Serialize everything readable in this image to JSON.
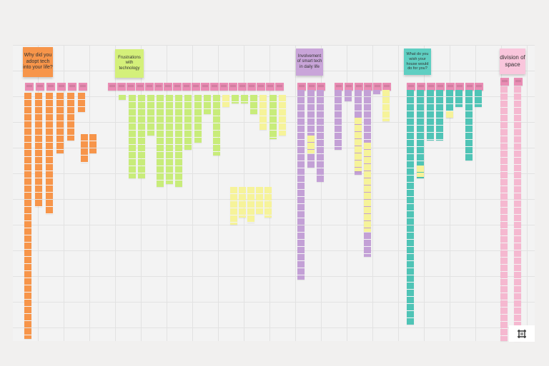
{
  "board": {
    "clusters": [
      {
        "title": "Why did you adopt tech into your life?",
        "color": "#f7954a"
      },
      {
        "title": "Frustrations with technology",
        "color": "#d4f07a"
      },
      {
        "title": "Involvement of smart tech in daily life",
        "color": "#c9a5d9"
      },
      {
        "title": "What do you wish your house would do for you?",
        "color": "#5fcfc2"
      },
      {
        "title": "division of space",
        "color": "#f9c6dc"
      }
    ],
    "note_colors": {
      "orange": "#f7954a",
      "green": "#c8ec7a",
      "yellow": "#f6f39a",
      "purple": "#c3a0d6",
      "teal": "#4fc4b6",
      "pink": "#f5b8d0",
      "header_pink": "#ea8cb4"
    }
  },
  "toolbar": {
    "frame_icon": "frame-icon"
  }
}
